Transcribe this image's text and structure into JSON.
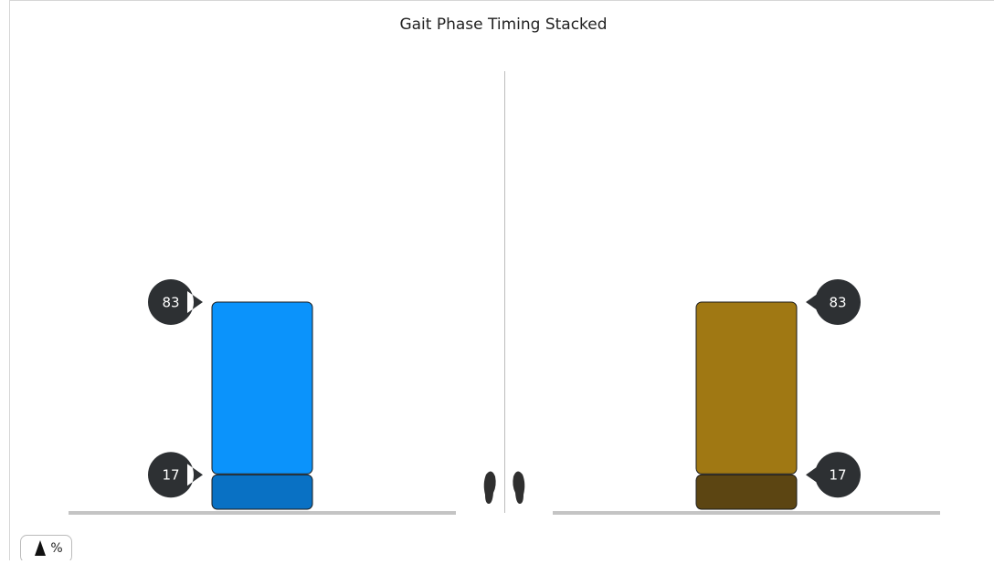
{
  "chart_data": {
    "type": "stacked-bar",
    "title": "Gait Phase Timing Stacked",
    "categories": [
      null,
      null
    ],
    "series": [
      {
        "colors": [
          "#0971c4",
          "#5c4512"
        ],
        "values": [
          17,
          17
        ]
      },
      {
        "colors": [
          "#0b93fb",
          "#a07813"
        ],
        "values": [
          83,
          83
        ]
      }
    ]
  },
  "unit_toggle": "%"
}
